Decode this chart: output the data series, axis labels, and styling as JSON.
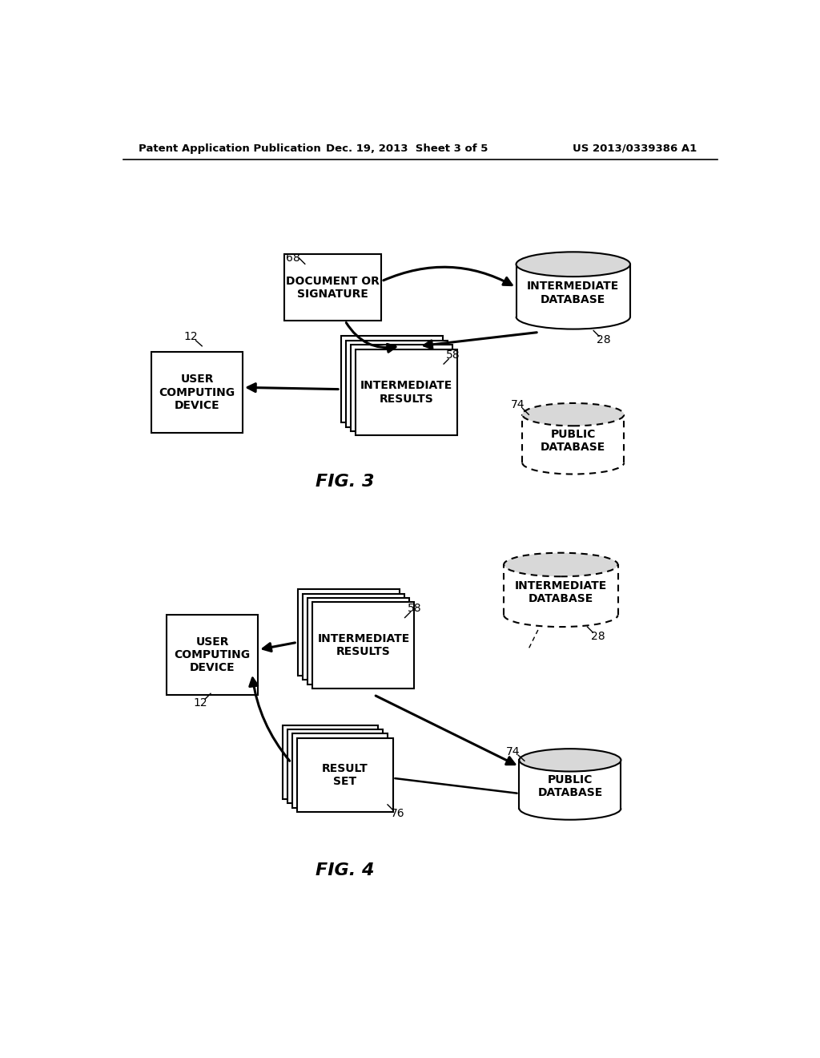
{
  "header_left": "Patent Application Publication",
  "header_mid": "Dec. 19, 2013  Sheet 3 of 5",
  "header_right": "US 2013/0339386 A1",
  "fig3_label": "FIG. 3",
  "fig4_label": "FIG. 4",
  "bg_color": "#ffffff"
}
